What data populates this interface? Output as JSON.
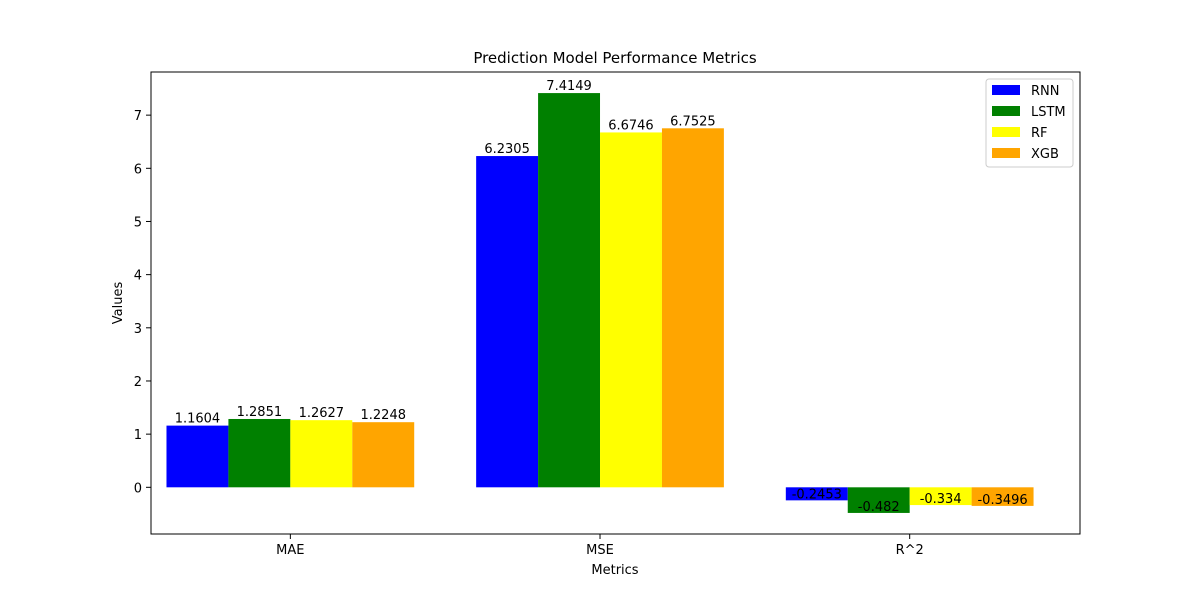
{
  "chart_data": {
    "type": "bar",
    "title": "Prediction Model Performance Metrics",
    "xlabel": "Metrics",
    "ylabel": "Values",
    "categories": [
      "MAE",
      "MSE",
      "R^2"
    ],
    "series": [
      {
        "name": "RNN",
        "color": "#0000ff",
        "values": [
          1.1604,
          6.2305,
          -0.2453
        ]
      },
      {
        "name": "LSTM",
        "color": "#008000",
        "values": [
          1.2851,
          7.4149,
          -0.482
        ]
      },
      {
        "name": "RF",
        "color": "#ffff00",
        "values": [
          1.2627,
          6.6746,
          -0.334
        ]
      },
      {
        "name": "XGB",
        "color": "#ffa500",
        "values": [
          1.2248,
          6.7525,
          -0.3496
        ]
      }
    ],
    "value_labels": [
      [
        "1.1604",
        "6.2305",
        "-0.2453"
      ],
      [
        "1.2851",
        "7.4149",
        "-0.482"
      ],
      [
        "1.2627",
        "6.6746",
        "-0.334"
      ],
      [
        "1.2248",
        "6.7525",
        "-0.3496"
      ]
    ],
    "ylim": [
      -0.8782,
      7.8114
    ],
    "yticks": [
      0,
      1,
      2,
      3,
      4,
      5,
      6,
      7
    ],
    "grid": false,
    "legend_position": "top-right"
  }
}
